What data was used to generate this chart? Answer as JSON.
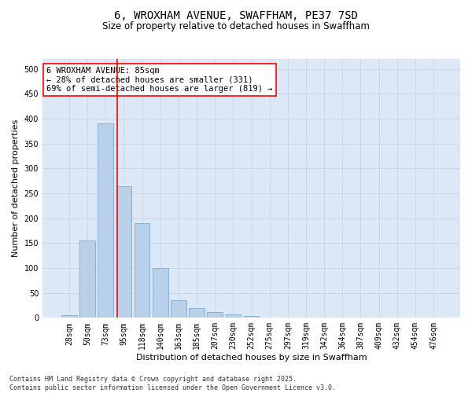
{
  "title_line1": "6, WROXHAM AVENUE, SWAFFHAM, PE37 7SD",
  "title_line2": "Size of property relative to detached houses in Swaffham",
  "xlabel": "Distribution of detached houses by size in Swaffham",
  "ylabel": "Number of detached properties",
  "categories": [
    "28sqm",
    "50sqm",
    "73sqm",
    "95sqm",
    "118sqm",
    "140sqm",
    "163sqm",
    "185sqm",
    "207sqm",
    "230sqm",
    "252sqm",
    "275sqm",
    "297sqm",
    "319sqm",
    "342sqm",
    "364sqm",
    "387sqm",
    "409sqm",
    "432sqm",
    "454sqm",
    "476sqm"
  ],
  "values": [
    5,
    155,
    390,
    265,
    190,
    100,
    35,
    20,
    11,
    7,
    3,
    1,
    0,
    0,
    0,
    0,
    0,
    0,
    0,
    0,
    0
  ],
  "bar_color": "#b8d0e8",
  "bar_edgecolor": "#7aadd4",
  "vline_color": "red",
  "vline_xindex": 2.65,
  "annotation_text": "6 WROXHAM AVENUE: 85sqm\n← 28% of detached houses are smaller (331)\n69% of semi-detached houses are larger (819) →",
  "annotation_box_color": "white",
  "annotation_box_edgecolor": "red",
  "ylim": [
    0,
    520
  ],
  "yticks": [
    0,
    50,
    100,
    150,
    200,
    250,
    300,
    350,
    400,
    450,
    500
  ],
  "grid_color": "#c8d8e8",
  "bg_color": "#dce8f5",
  "footer": "Contains HM Land Registry data © Crown copyright and database right 2025.\nContains public sector information licensed under the Open Government Licence v3.0.",
  "title_fontsize": 10,
  "subtitle_fontsize": 8.5,
  "xlabel_fontsize": 8,
  "ylabel_fontsize": 8,
  "tick_fontsize": 7,
  "annotation_fontsize": 7.5,
  "footer_fontsize": 6
}
